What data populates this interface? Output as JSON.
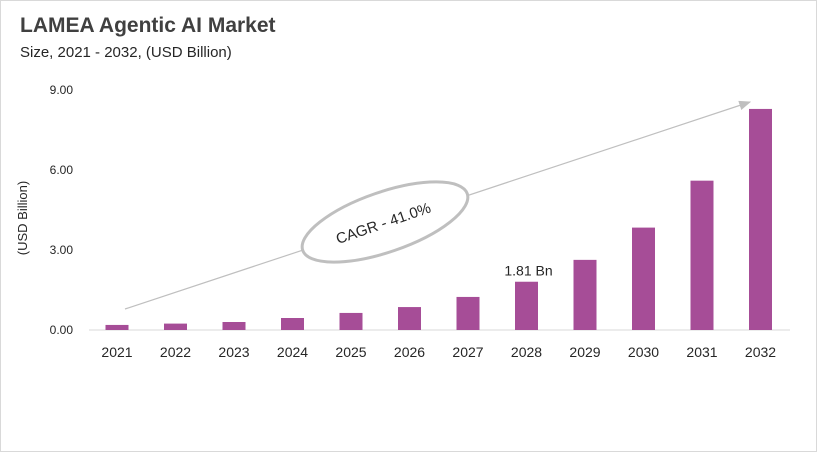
{
  "title": "LAMEA Agentic AI Market",
  "subtitle": "Size, 2021 - 2032, (USD Billion)",
  "colors": {
    "bar": "#a64d97",
    "arrow": "#bfbfbf",
    "ellipse": "#bfbfbf"
  },
  "chart_data": {
    "type": "bar",
    "title": "LAMEA Agentic AI Market",
    "subtitle": "Size, 2021 - 2032, (USD Billion)",
    "xlabel": "",
    "ylabel": "(USD Billion)",
    "categories": [
      "2021",
      "2022",
      "2023",
      "2024",
      "2025",
      "2026",
      "2027",
      "2028",
      "2029",
      "2030",
      "2031",
      "2032"
    ],
    "values": [
      0.19,
      0.24,
      0.3,
      0.45,
      0.64,
      0.86,
      1.24,
      1.81,
      2.63,
      3.84,
      5.6,
      8.29
    ],
    "ylim": [
      0,
      9
    ],
    "yticks": [
      "0.00",
      "3.00",
      "6.00",
      "9.00"
    ],
    "ytick_values": [
      0,
      3,
      6,
      9
    ],
    "grid": false,
    "data_labels": [
      {
        "category": "2028",
        "text": "1.81 Bn"
      }
    ],
    "annotation": "CAGR - 41.0%"
  }
}
